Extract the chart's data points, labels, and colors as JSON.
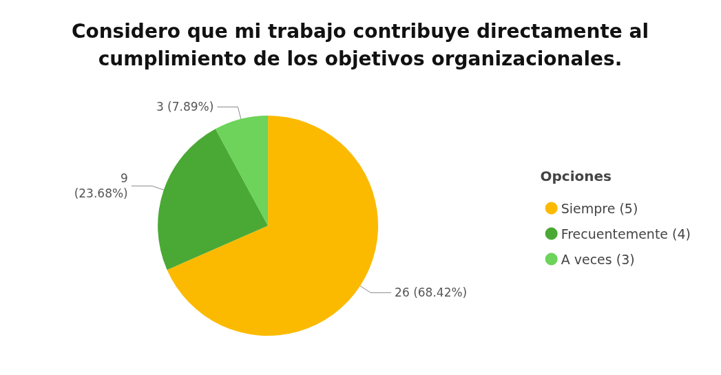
{
  "chart_data": {
    "type": "pie",
    "title": "Considero que mi trabajo contribuye directamente al\ncumplimiento de los objetivos organizacionales.",
    "legend_title": "Opciones",
    "legend": "right",
    "categories": [
      "Siempre (5)",
      "Frecuentemente (4)",
      "A veces (3)"
    ],
    "values": [
      26,
      9,
      3
    ],
    "colors": [
      "#fbba00",
      "#4aa934",
      "#6dd35a"
    ],
    "value_labels": [
      "26 (68.42%)",
      "9\n(23.68%)",
      "3 (7.89%)"
    ]
  }
}
